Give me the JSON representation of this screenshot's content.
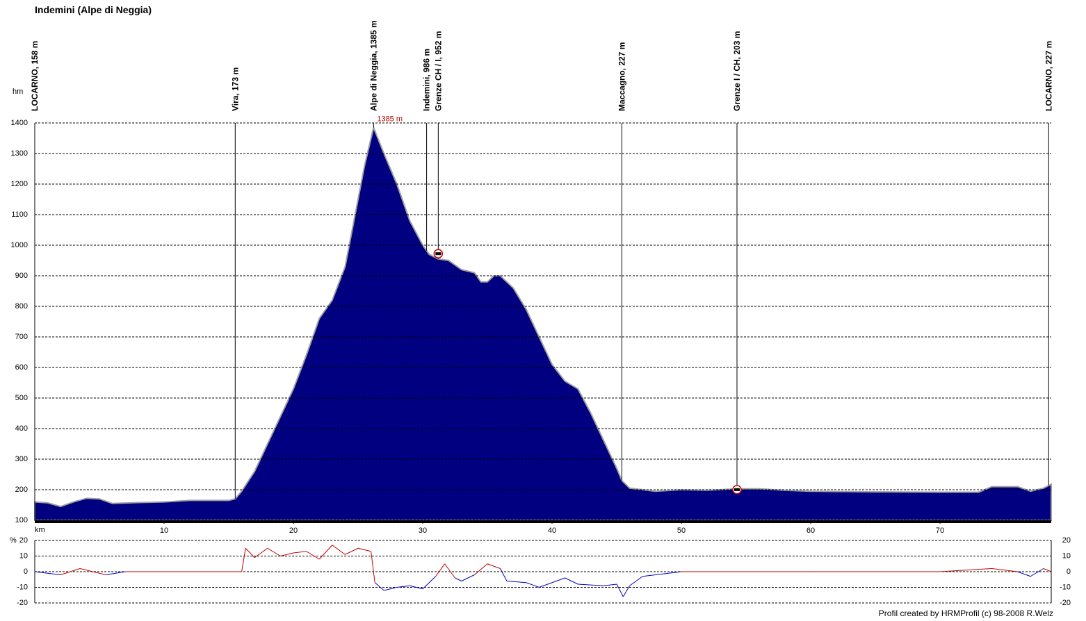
{
  "title": "Indemini (Alpe di Neggia)",
  "footer": "Profil created by HRMProfil (c) 98-2008 R.Welz",
  "chart_data": [
    {
      "type": "area",
      "y_label": "hm",
      "x_label": "km",
      "color": "#000080",
      "outline": "#a0a0a0",
      "xlim": [
        0,
        78.6
      ],
      "ylim": [
        100,
        1400
      ],
      "xticks": [
        10,
        20,
        30,
        40,
        50,
        60,
        70
      ],
      "yticks": [
        100,
        200,
        300,
        400,
        500,
        600,
        700,
        800,
        900,
        1000,
        1100,
        1200,
        1300,
        1400
      ],
      "grid": true,
      "x": [
        0,
        1,
        2,
        3,
        4,
        5,
        6,
        8,
        10,
        12,
        15,
        15.5,
        16,
        17,
        18,
        19,
        20,
        21,
        22,
        23,
        24,
        25,
        25.5,
        26.2,
        27,
        28,
        29,
        30,
        30.5,
        31.2,
        32,
        33,
        34,
        34.5,
        35,
        35.5,
        36,
        37,
        38,
        39,
        40,
        41,
        42,
        43,
        44,
        45,
        45.4,
        46,
        48,
        50,
        52,
        54.3,
        56,
        58,
        60,
        65,
        70,
        73,
        74,
        76,
        77,
        78,
        78.6
      ],
      "values": [
        160,
        157,
        145,
        160,
        172,
        170,
        155,
        158,
        160,
        165,
        165,
        170,
        195,
        260,
        350,
        440,
        530,
        640,
        760,
        820,
        930,
        1150,
        1260,
        1385,
        1300,
        1200,
        1080,
        1000,
        970,
        955,
        950,
        920,
        910,
        880,
        880,
        900,
        900,
        860,
        790,
        700,
        610,
        555,
        530,
        450,
        360,
        270,
        230,
        205,
        195,
        200,
        198,
        203,
        203,
        198,
        195,
        193,
        192,
        192,
        210,
        210,
        195,
        205,
        218
      ],
      "annotation": {
        "text": "1385 m",
        "x": 26.2,
        "y": 1385,
        "color": "#c00000"
      },
      "waypoints": [
        {
          "label": "LOCARNO, 158 m",
          "x": 0
        },
        {
          "label": "Vira, 173 m",
          "x": 15.5
        },
        {
          "label": "Alpe di Neggia, 1385 m",
          "x": 26.2
        },
        {
          "label": "Indemini, 986 m",
          "x": 30.3
        },
        {
          "label": "Grenze CH / I, 952 m",
          "x": 31.2
        },
        {
          "label": "Maccagno, 227 m",
          "x": 45.4
        },
        {
          "label": "Grenze I / CH, 203 m",
          "x": 54.3
        },
        {
          "label": "LOCARNO, 227 m",
          "x": 78.4
        }
      ]
    },
    {
      "type": "line",
      "y_label": "%",
      "colors": {
        "up": "#c00000",
        "down": "#0000c0"
      },
      "xlim": [
        0,
        78.6
      ],
      "ylim": [
        -20,
        20
      ],
      "yticks": [
        -20,
        -10,
        0,
        10,
        20
      ],
      "grid": true,
      "x": [
        0,
        2,
        3.5,
        5.5,
        7,
        15,
        16,
        16.3,
        17,
        18,
        19,
        20,
        21,
        22,
        23,
        24,
        25,
        26,
        26.3,
        27,
        28,
        29,
        30,
        31,
        31.7,
        32.5,
        33,
        34,
        35,
        36,
        36.5,
        38,
        39,
        40,
        41,
        42,
        44,
        45,
        45.5,
        46,
        47,
        50,
        55,
        60,
        70,
        74,
        76,
        77,
        78,
        78.6
      ],
      "values": [
        0,
        -2,
        2,
        -2,
        0,
        0,
        0,
        15,
        9,
        15,
        10,
        12,
        13,
        8,
        17,
        11,
        15,
        13,
        -7,
        -12,
        -10,
        -9,
        -11,
        -3,
        5,
        -4,
        -6,
        -2,
        5,
        2,
        -6,
        -7,
        -10,
        -7,
        -4,
        -8,
        -9,
        -8,
        -16,
        -9,
        -3,
        0,
        0,
        0,
        0,
        2,
        0,
        -3,
        2,
        0
      ]
    }
  ]
}
